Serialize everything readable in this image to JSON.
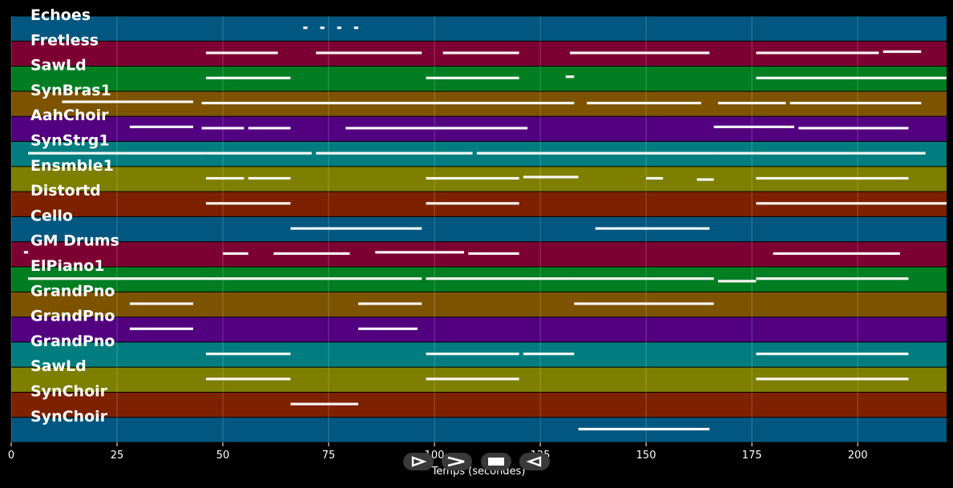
{
  "chart_data": {
    "type": "piano-roll",
    "xlabel": "Temps (secondes)",
    "xlim": [
      0,
      221
    ],
    "xticks": [
      0,
      25,
      50,
      75,
      100,
      125,
      150,
      175,
      200
    ],
    "grid": true,
    "tracks": [
      {
        "name": "Echoes",
        "color": "#01577f",
        "pitch": [
          0,
          10
        ],
        "notes": [
          [
            69,
            70,
            5
          ],
          [
            73,
            74,
            5
          ],
          [
            77,
            78,
            5
          ],
          [
            81,
            82,
            5
          ]
        ]
      },
      {
        "name": "Fretless",
        "color": "#7d0032",
        "pitch": [
          0,
          10
        ],
        "notes": [
          [
            46,
            63,
            5
          ],
          [
            72,
            97,
            5
          ],
          [
            102,
            120,
            5
          ],
          [
            132,
            165,
            5
          ],
          [
            176,
            205,
            5
          ],
          [
            206,
            215,
            6
          ]
        ]
      },
      {
        "name": "SawLd",
        "color": "#017e22",
        "pitch": [
          0,
          10
        ],
        "notes": [
          [
            46,
            66,
            5
          ],
          [
            98,
            120,
            5
          ],
          [
            131,
            133,
            6
          ],
          [
            176,
            221,
            5
          ]
        ]
      },
      {
        "name": "SynBras1",
        "color": "#7d5300",
        "pitch": [
          0,
          10
        ],
        "notes": [
          [
            12,
            43,
            6
          ],
          [
            45,
            122,
            5
          ],
          [
            122,
            133,
            5
          ],
          [
            136,
            163,
            5
          ],
          [
            167,
            183,
            5
          ],
          [
            184,
            215,
            5
          ]
        ]
      },
      {
        "name": "AahChoir",
        "color": "#52007f",
        "pitch": [
          0,
          10
        ],
        "notes": [
          [
            28,
            43,
            6
          ],
          [
            45,
            55,
            5
          ],
          [
            56,
            66,
            5
          ],
          [
            79,
            122,
            5
          ],
          [
            166,
            185,
            6
          ],
          [
            186,
            212,
            5
          ]
        ]
      },
      {
        "name": "SynStrg1",
        "color": "#017d7f",
        "pitch": [
          0,
          10
        ],
        "notes": [
          [
            4,
            46,
            5
          ],
          [
            46,
            71,
            5
          ],
          [
            72,
            109,
            5
          ],
          [
            110,
            166,
            5
          ],
          [
            166,
            176,
            5
          ],
          [
            176,
            216,
            5
          ]
        ]
      },
      {
        "name": "Ensmble1",
        "color": "#7e7e00",
        "pitch": [
          0,
          10
        ],
        "notes": [
          [
            46,
            55,
            5
          ],
          [
            56,
            66,
            5
          ],
          [
            98,
            120,
            5
          ],
          [
            121,
            134,
            6
          ],
          [
            150,
            154,
            5
          ],
          [
            162,
            166,
            4
          ],
          [
            176,
            212,
            5
          ]
        ]
      },
      {
        "name": "Distortd",
        "color": "#7d2100",
        "pitch": [
          0,
          10
        ],
        "notes": [
          [
            46,
            66,
            5
          ],
          [
            98,
            120,
            5
          ],
          [
            176,
            221,
            5
          ]
        ]
      },
      {
        "name": "Cello",
        "color": "#01577f",
        "pitch": [
          0,
          10
        ],
        "notes": [
          [
            66,
            97,
            5
          ],
          [
            138,
            165,
            5
          ]
        ]
      },
      {
        "name": "GM Drums",
        "color": "#7d0032",
        "pitch": [
          0,
          10
        ],
        "notes": [
          [
            3,
            4,
            6
          ],
          [
            50,
            56,
            5
          ],
          [
            62,
            80,
            5
          ],
          [
            86,
            107,
            6
          ],
          [
            108,
            120,
            5
          ],
          [
            180,
            210,
            5
          ]
        ]
      },
      {
        "name": "ElPiano1",
        "color": "#017e22",
        "pitch": [
          0,
          10
        ],
        "notes": [
          [
            4,
            46,
            5
          ],
          [
            46,
            97,
            5
          ],
          [
            98,
            133,
            5
          ],
          [
            133,
            166,
            5
          ],
          [
            167,
            176,
            3
          ],
          [
            176,
            212,
            5
          ]
        ]
      },
      {
        "name": "GrandPno",
        "color": "#7d5300",
        "pitch": [
          0,
          10
        ],
        "notes": [
          [
            28,
            43,
            5
          ],
          [
            82,
            97,
            5
          ],
          [
            133,
            166,
            5
          ]
        ]
      },
      {
        "name": "GrandPno",
        "color": "#52007f",
        "pitch": [
          0,
          10
        ],
        "notes": [
          [
            28,
            43,
            5
          ],
          [
            82,
            96,
            5
          ]
        ]
      },
      {
        "name": "GrandPno",
        "color": "#017d7f",
        "pitch": [
          0,
          10
        ],
        "notes": [
          [
            46,
            66,
            5
          ],
          [
            98,
            120,
            5
          ],
          [
            121,
            133,
            5
          ],
          [
            176,
            212,
            5
          ]
        ]
      },
      {
        "name": "SawLd",
        "color": "#7e7e00",
        "pitch": [
          0,
          10
        ],
        "notes": [
          [
            46,
            66,
            5
          ],
          [
            98,
            120,
            5
          ],
          [
            176,
            212,
            5
          ]
        ]
      },
      {
        "name": "SynChoir",
        "color": "#7d2100",
        "pitch": [
          0,
          10
        ],
        "notes": [
          [
            66,
            82,
            5
          ]
        ]
      },
      {
        "name": "SynChoir",
        "color": "#01577f",
        "pitch": [
          0,
          10
        ],
        "notes": [
          [
            134,
            165,
            5
          ]
        ]
      }
    ]
  },
  "controls": {
    "play_icon": "play-icon",
    "forward_icon": "fast-forward-icon",
    "stop_icon": "stop-icon",
    "back_icon": "rewind-icon"
  }
}
